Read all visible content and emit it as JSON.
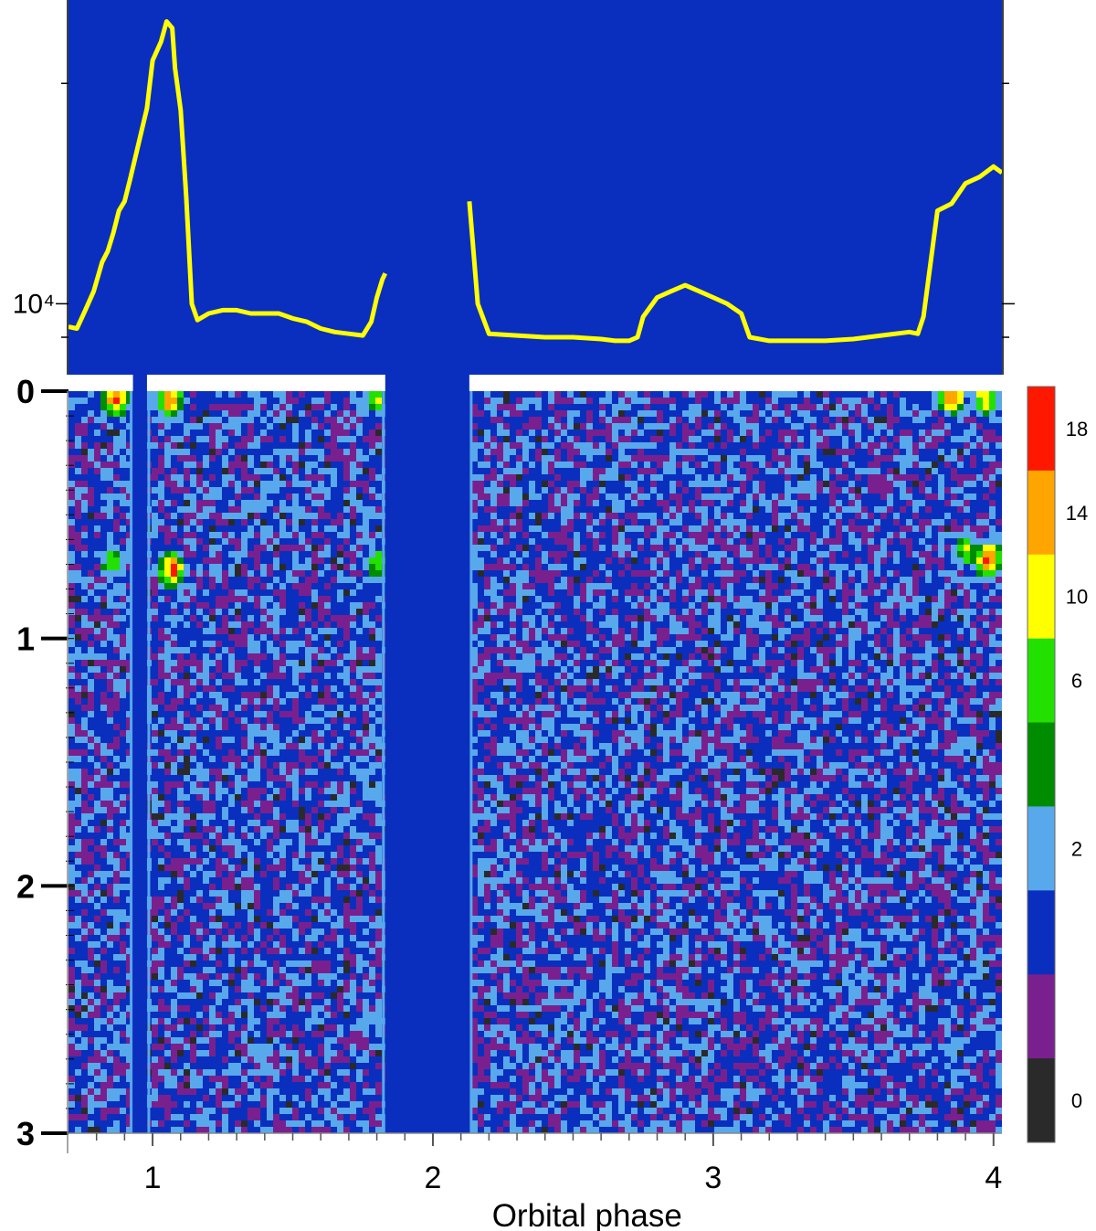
{
  "chart_data": [
    {
      "type": "line",
      "yscale": "log",
      "yticklabel": "10⁴",
      "ytick_value": 10000,
      "ylim": [
        8000,
        26000
      ],
      "xlim": [
        0.7,
        4.03
      ],
      "background": "#0a2fbe",
      "line_color": "#ffff00",
      "grid": false,
      "gaps": [
        [
          0.93,
          0.98
        ],
        [
          1.83,
          2.13
        ]
      ],
      "series": [
        {
          "x": [
            0.7,
            0.73,
            0.76,
            0.79,
            0.82,
            0.84,
            0.86,
            0.88,
            0.9,
            0.92,
            0.98,
            1.0,
            1.03,
            1.05,
            1.07,
            1.08,
            1.1,
            1.12,
            1.14,
            1.16,
            1.2,
            1.25,
            1.3,
            1.35,
            1.4,
            1.45,
            1.5,
            1.55,
            1.6,
            1.65,
            1.7,
            1.75,
            1.78,
            1.8,
            1.82,
            1.83
          ],
          "y": [
            9300,
            9250,
            9800,
            10400,
            11400,
            11800,
            12500,
            13400,
            13800,
            14800,
            18500,
            21500,
            22800,
            24300,
            23800,
            21000,
            18400,
            14000,
            10000,
            9500,
            9700,
            9800,
            9800,
            9700,
            9700,
            9700,
            9550,
            9450,
            9250,
            9150,
            9100,
            9050,
            9450,
            10200,
            10800,
            11000
          ]
        },
        {
          "x": [
            2.13,
            2.16,
            2.2,
            2.3,
            2.4,
            2.5,
            2.6,
            2.65,
            2.7,
            2.73,
            2.75,
            2.8,
            2.85,
            2.9,
            2.95,
            3.0,
            3.05,
            3.1,
            3.13,
            3.2,
            3.3,
            3.4,
            3.5,
            3.6,
            3.7,
            3.73,
            3.75,
            3.8,
            3.85,
            3.9,
            3.95,
            4.0,
            4.03
          ],
          "y": [
            13800,
            10000,
            9100,
            9050,
            9000,
            9000,
            8950,
            8900,
            8900,
            9000,
            9600,
            10200,
            10400,
            10600,
            10400,
            10200,
            10000,
            9700,
            9000,
            8900,
            8900,
            8900,
            8950,
            9050,
            9150,
            9100,
            9600,
            13400,
            13700,
            14600,
            14900,
            15400,
            15100
          ]
        }
      ]
    },
    {
      "type": "heatmap",
      "xlabel": "Orbital phase",
      "xticks": [
        1,
        2,
        3,
        4
      ],
      "xlim": [
        0.7,
        4.03
      ],
      "yticks": [
        0,
        1,
        2,
        3
      ],
      "ylim": [
        3,
        0
      ],
      "colorbar": {
        "ticks": [
          18,
          14,
          10,
          6,
          2,
          0
        ],
        "levels": [
          {
            "color": "#ff1800"
          },
          {
            "color": "#ffa500"
          },
          {
            "color": "#ffff00"
          },
          {
            "color": "#22e000"
          },
          {
            "color": "#008c00"
          },
          {
            "color": "#58a8ec"
          },
          {
            "color": "#0a2fbe"
          },
          {
            "color": "#7a208e"
          },
          {
            "color": "#2a2a2a"
          }
        ]
      },
      "masked_x": [
        [
          0.93,
          0.98
        ],
        [
          1.83,
          2.13
        ]
      ],
      "hotspots": [
        {
          "x": 0.87,
          "y": 0.03,
          "level": 8
        },
        {
          "x": 1.06,
          "y": 0.03,
          "level": 8
        },
        {
          "x": 1.8,
          "y": 0.03,
          "level": 6
        },
        {
          "x": 3.85,
          "y": 0.02,
          "level": 8
        },
        {
          "x": 3.97,
          "y": 0.03,
          "level": 7
        },
        {
          "x": 0.86,
          "y": 0.69,
          "level": 6
        },
        {
          "x": 1.07,
          "y": 0.72,
          "level": 8
        },
        {
          "x": 1.81,
          "y": 0.7,
          "level": 6
        },
        {
          "x": 3.9,
          "y": 0.64,
          "level": 6
        },
        {
          "x": 3.98,
          "y": 0.68,
          "level": 8
        }
      ]
    }
  ]
}
